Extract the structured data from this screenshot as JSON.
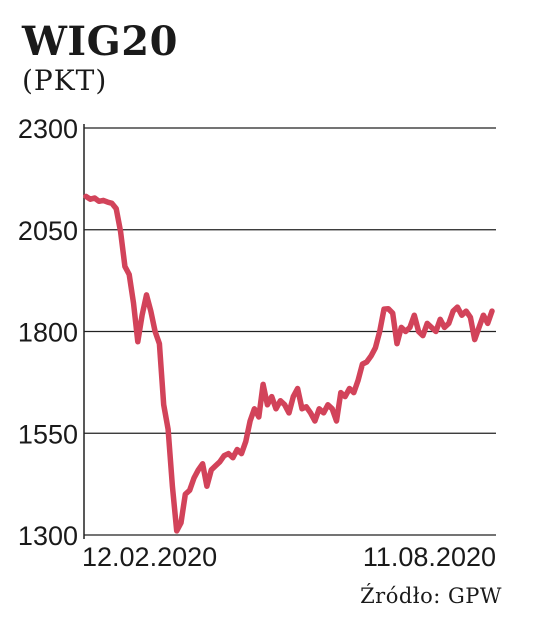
{
  "chart_data": {
    "type": "line",
    "title": "WIG20",
    "subtitle": "(PKT)",
    "source": "Źródło: GPW",
    "ylim": [
      1300,
      2300
    ],
    "yticks": [
      "2300",
      "2050",
      "1800",
      "1550",
      "1300"
    ],
    "xtick_labels": [
      "12.02.2020",
      "11.08.2020"
    ],
    "grid": true,
    "line_color": "#d2435a",
    "series": [
      {
        "values": [
          2132,
          2125,
          2128,
          2120,
          2122,
          2118,
          2115,
          2102,
          2045,
          1960,
          1940,
          1870,
          1775,
          1840,
          1890,
          1850,
          1800,
          1770,
          1620,
          1560,
          1420,
          1310,
          1330,
          1400,
          1410,
          1440,
          1460,
          1475,
          1420,
          1460,
          1470,
          1480,
          1495,
          1500,
          1490,
          1510,
          1500,
          1530,
          1580,
          1610,
          1590,
          1670,
          1620,
          1640,
          1610,
          1630,
          1620,
          1600,
          1640,
          1660,
          1610,
          1615,
          1600,
          1580,
          1610,
          1600,
          1620,
          1610,
          1580,
          1650,
          1640,
          1660,
          1650,
          1680,
          1720,
          1725,
          1740,
          1760,
          1800,
          1855,
          1856,
          1845,
          1770,
          1810,
          1800,
          1810,
          1840,
          1800,
          1790,
          1820,
          1810,
          1800,
          1830,
          1810,
          1820,
          1850,
          1860,
          1840,
          1850,
          1835,
          1780,
          1810,
          1840,
          1820,
          1850
        ]
      }
    ]
  }
}
